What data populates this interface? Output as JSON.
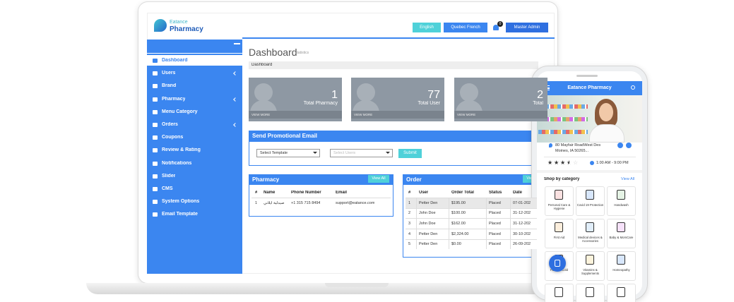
{
  "header": {
    "brand_top": "Eatance",
    "brand": "Pharmacy",
    "languages": [
      "English",
      "Quebec French"
    ],
    "notifications": "0",
    "user": "Master Admin"
  },
  "sidebar": [
    "Dashboard",
    "Users",
    "Brand",
    "Pharmacy",
    "Menu Category",
    "Orders",
    "Coupons",
    "Review & Rating",
    "Notifications",
    "Slider",
    "CMS",
    "System Options",
    "Email Template"
  ],
  "page": {
    "title": "Dashboard",
    "subtitle": "statistics",
    "breadcrumb": "Dashboard"
  },
  "stats": [
    {
      "value": "1",
      "label": "Total Pharmacy",
      "link": "VIEW MORE"
    },
    {
      "value": "77",
      "label": "Total User",
      "link": "VIEW MORE"
    },
    {
      "value": "2",
      "label": "Total",
      "link": "VIEW MORE"
    }
  ],
  "promo": {
    "title": "Send Promotional Email",
    "template": "Select Template",
    "users": "Select Users",
    "submit": "Submit"
  },
  "pharmacy": {
    "title": "Pharmacy",
    "view_all": "View All",
    "columns": [
      "#",
      "Name",
      "Phone Number",
      "Email"
    ],
    "rows": [
      [
        "1",
        "صيدلية ايلاني",
        "+1 315 715 8494",
        "support@eatance.com"
      ]
    ]
  },
  "orders": {
    "title": "Order",
    "view_all": "View All",
    "columns": [
      "#",
      "User",
      "Order Total",
      "Status",
      "Date"
    ],
    "rows": [
      [
        "1",
        "Petter Den",
        "$195.00",
        "Placed",
        "07-01-202"
      ],
      [
        "2",
        "John Doe",
        "$100.00",
        "Placed",
        "31-12-202"
      ],
      [
        "3",
        "John Doe",
        "$162.00",
        "Placed",
        "31-12-202"
      ],
      [
        "4",
        "Petter Den",
        "$2,324.00",
        "Placed",
        "30-10-202"
      ],
      [
        "5",
        "Petter Den",
        "$0.00",
        "Placed",
        "26-09-202"
      ]
    ]
  },
  "phone": {
    "title": "Eatance Pharmacy",
    "address": "80 Mayfair RoadWest Des Moines, IA 50265...",
    "rating": 3.5,
    "hours": "1:00 AM - 9:00 PM",
    "section": "Shop by category",
    "view_all": "View All",
    "categories": [
      "Personal Care & Hygiene",
      "Covid 19 Protection",
      "Handwash",
      "First Aid",
      "Medical devices & Accessories",
      "Baby & MomCare",
      "Fever & Cold",
      "Vitamins & Supplements",
      "Homeopathy"
    ]
  }
}
